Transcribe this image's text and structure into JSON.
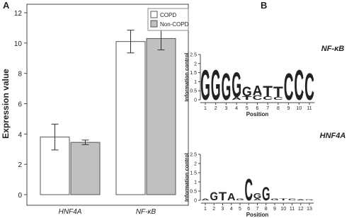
{
  "panels": [
    "A",
    "B"
  ],
  "chart_data": [
    {
      "type": "bar",
      "y_label": "Expression value",
      "categories": [
        "HNF4A",
        "NF-κB"
      ],
      "series": [
        {
          "name": "COPD",
          "color": "#ffffff",
          "values": [
            3.8,
            10.1
          ],
          "errors": [
            0.85,
            0.75
          ]
        },
        {
          "name": "Non-COPD",
          "color": "#c0c0c0",
          "values": [
            3.45,
            10.3
          ],
          "errors": [
            0.15,
            0.75
          ]
        }
      ],
      "ylim": [
        0,
        12
      ],
      "yticks": [
        0,
        2,
        4,
        6,
        8,
        10,
        12
      ],
      "legend": "top-right",
      "grid": false
    },
    {
      "type": "logo",
      "title": "NF-κB",
      "x_label": "Position",
      "y_label": "Information control",
      "x": [
        1,
        2,
        3,
        4,
        5,
        6,
        7,
        8,
        9,
        10,
        11
      ],
      "stacks": [
        [
          {
            "letter": "G",
            "value": 1.7
          }
        ],
        [
          {
            "letter": "G",
            "value": 1.7
          }
        ],
        [
          {
            "letter": "G",
            "value": 1.5
          }
        ],
        [
          {
            "letter": "A",
            "value": 0.15
          },
          {
            "letter": "G",
            "value": 1.4
          }
        ],
        [
          {
            "letter": "T",
            "value": 0.2
          },
          {
            "letter": "G",
            "value": 0.55
          }
        ],
        [
          {
            "letter": "C",
            "value": 0.25
          },
          {
            "letter": "A",
            "value": 0.55
          }
        ],
        [
          {
            "letter": "C",
            "value": 0.2
          },
          {
            "letter": "T",
            "value": 0.6
          }
        ],
        [
          {
            "letter": "C",
            "value": 0.15
          },
          {
            "letter": "T",
            "value": 0.6
          }
        ],
        [
          {
            "letter": "C",
            "value": 1.5
          }
        ],
        [
          {
            "letter": "C",
            "value": 1.7
          }
        ],
        [
          {
            "letter": "C",
            "value": 1.5
          }
        ]
      ],
      "letter_colors": {
        "A": "#2ea02e",
        "C": "#1f3fbf",
        "G": "#f0a020",
        "T": "#d62020"
      },
      "ylim": [
        0,
        2.5
      ],
      "yticks": [
        0,
        0.5,
        1,
        1.5,
        2,
        2.5
      ]
    },
    {
      "type": "logo",
      "title": "HNF4A",
      "x_label": "Position",
      "y_label": "Information control",
      "x": [
        1,
        2,
        3,
        4,
        5,
        6,
        7,
        8,
        9,
        10,
        11,
        12,
        13
      ],
      "stacks": [
        [
          {
            "letter": "A",
            "value": 0.1
          }
        ],
        [
          {
            "letter": "G",
            "value": 0.45
          }
        ],
        [
          {
            "letter": "T",
            "value": 0.45
          }
        ],
        [
          {
            "letter": "A",
            "value": 0.4
          }
        ],
        [
          {
            "letter": "G",
            "value": 0.1
          }
        ],
        [
          {
            "letter": "C",
            "value": 1.2
          }
        ],
        [
          {
            "letter": "A",
            "value": 0.1
          },
          {
            "letter": "G",
            "value": 0.3
          }
        ],
        [
          {
            "letter": "G",
            "value": 0.75
          }
        ],
        [
          {
            "letter": "G",
            "value": 0.1
          }
        ],
        [
          {
            "letter": "T",
            "value": 0.1
          }
        ],
        [
          {
            "letter": "C",
            "value": 0.1
          }
        ],
        [
          {
            "letter": "A",
            "value": 0.05
          }
        ],
        [
          {
            "letter": "G",
            "value": 0.05
          }
        ]
      ],
      "letter_colors": {
        "A": "#2ea02e",
        "C": "#1f3fbf",
        "G": "#f0a020",
        "T": "#d62020"
      },
      "ylim": [
        0,
        2.5
      ],
      "yticks": [
        0,
        0.5,
        1,
        1.5,
        2,
        2.5
      ]
    }
  ]
}
